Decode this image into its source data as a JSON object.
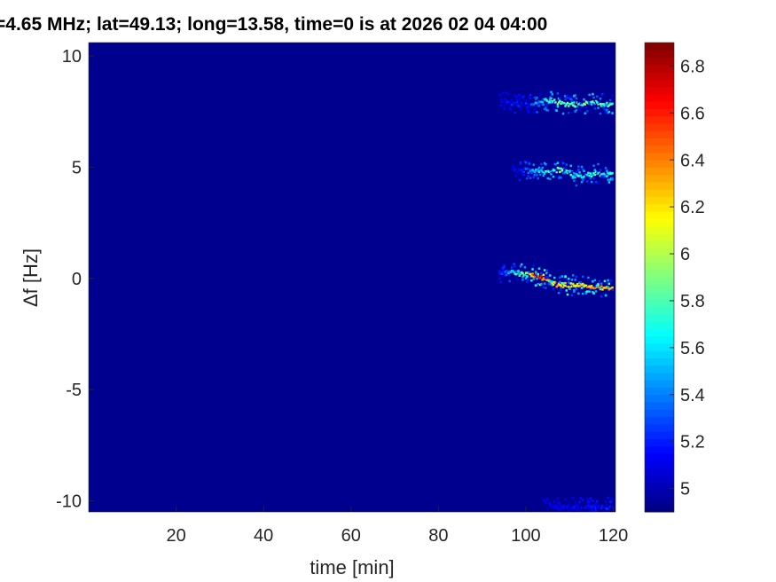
{
  "chart_data": {
    "type": "heatmap",
    "title": "=4.65 MHz;  lat=49.13; long=13.58, time=0 is at 2026 02 04 04:00",
    "xlabel": "time [min]",
    "ylabel": "Δf [Hz]",
    "xlim": [
      0,
      120.5
    ],
    "ylim": [
      -10.5,
      10.6
    ],
    "xticks": [
      20,
      40,
      60,
      80,
      100,
      120
    ],
    "yticks": [
      -10,
      -5,
      0,
      5,
      10
    ],
    "colorbar": {
      "ticks": [
        5,
        5.2,
        5.4,
        5.6,
        5.8,
        6,
        6.2,
        6.4,
        6.6,
        6.8
      ],
      "tick_labels": [
        "5",
        "5.2",
        "5.4",
        "5.6",
        "5.8",
        "6",
        "6.2",
        "6.4",
        "6.6",
        "6.8"
      ],
      "range": [
        4.9,
        6.9
      ],
      "colormap": "jet"
    },
    "background_value": 4.9,
    "traces": [
      {
        "points": [
          [
            94,
            8.0,
            5.2
          ],
          [
            100,
            7.8,
            5.3
          ],
          [
            105,
            8.0,
            5.9
          ],
          [
            110,
            7.8,
            6.0
          ],
          [
            115,
            7.9,
            6.0
          ],
          [
            120,
            7.8,
            5.9
          ]
        ]
      },
      {
        "points": [
          [
            97,
            4.9,
            5.2
          ],
          [
            104,
            4.8,
            5.8
          ],
          [
            108,
            4.9,
            6.0
          ],
          [
            112,
            4.6,
            5.8
          ],
          [
            116,
            4.7,
            5.9
          ],
          [
            120,
            4.7,
            5.9
          ]
        ]
      },
      {
        "points": [
          [
            94,
            0.3,
            5.3
          ],
          [
            100,
            0.2,
            6.1
          ],
          [
            103,
            0.1,
            6.7
          ],
          [
            107,
            -0.3,
            6.4
          ],
          [
            112,
            -0.3,
            6.3
          ],
          [
            116,
            -0.4,
            6.5
          ],
          [
            120,
            -0.4,
            6.4
          ]
        ]
      },
      {
        "points": [
          [
            104,
            -10.3,
            5.2
          ],
          [
            110,
            -10.3,
            5.2
          ],
          [
            120,
            -10.3,
            5.3
          ]
        ]
      }
    ]
  }
}
